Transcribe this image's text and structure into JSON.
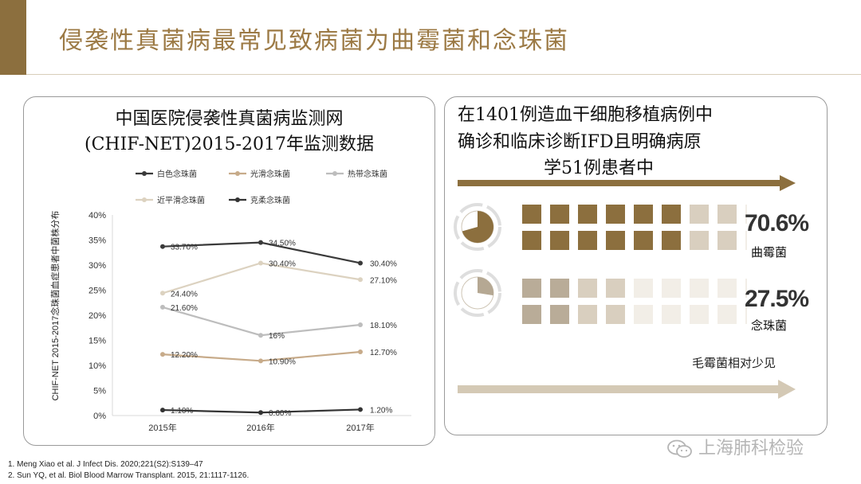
{
  "slide": {
    "title": "侵袭性真菌病最常见致病菌为曲霉菌和念珠菌"
  },
  "left_panel": {
    "title_line1": "中国医院侵袭性真菌病监测网",
    "title_line2": "(CHIF-NET)2015-2017年监测数据"
  },
  "chart_data": {
    "type": "line",
    "ylabel": "CHIF-NET 2015-2017念珠菌血症患者中菌株分布",
    "xlabel": "",
    "x": [
      "2015年",
      "2016年",
      "2017年"
    ],
    "ylim": [
      0,
      40
    ],
    "yticks": [
      "0%",
      "5%",
      "10%",
      "15%",
      "20%",
      "25%",
      "30%",
      "35%",
      "40%"
    ],
    "ytick_values": [
      0,
      5,
      10,
      15,
      20,
      25,
      30,
      35,
      40
    ],
    "legend_position": "top",
    "grid": false,
    "series": [
      {
        "name": "白色念珠菌",
        "color": "#3a3a3a",
        "values": [
          33.7,
          34.5,
          30.4
        ],
        "labels": [
          "33.70%",
          "34.50%",
          "30.40%"
        ]
      },
      {
        "name": "光滑念珠菌",
        "color": "#c7ab8a",
        "values": [
          12.2,
          10.9,
          12.7
        ],
        "labels": [
          "12.20%",
          "10.90%",
          "12.70%"
        ]
      },
      {
        "name": "热带念珠菌",
        "color": "#bdbdbd",
        "values": [
          21.6,
          16.0,
          18.1
        ],
        "labels": [
          "21.60%",
          "16%",
          "18.10%"
        ]
      },
      {
        "name": "近平滑念珠菌",
        "color": "#dcd2c0",
        "values": [
          24.4,
          30.4,
          27.1
        ],
        "labels": [
          "24.40%",
          "30.40%",
          "27.10%"
        ]
      },
      {
        "name": "克柔念珠菌",
        "color": "#333333",
        "values": [
          1.1,
          0.6,
          1.2
        ],
        "labels": [
          "1.10%",
          "0.60%",
          "1.20%"
        ]
      }
    ]
  },
  "right_panel": {
    "title_line1": "在1401例造血干细胞移植病例中",
    "title_line2": "确诊和临床诊断IFD且明确病原",
    "title_line3": "学51例患者中",
    "stats": [
      {
        "value": "70.6%",
        "label": "曲霉菌",
        "fraction": 0.706
      },
      {
        "value": "27.5%",
        "label": "念珠菌",
        "fraction": 0.275
      }
    ],
    "note": "毛霉菌相对少见",
    "arrow_color_top": "#8c6f3e",
    "arrow_color_bottom": "#d4c9b5"
  },
  "footnotes": [
    "1.    Meng Xiao et al. J Infect Dis. 2020;221(S2):S139–47",
    "2.    Sun YQ, et al. Biol Blood Marrow Transplant.  2015,  21:1117-1126."
  ],
  "watermark": {
    "text": "上海肺科检验",
    "icon": "wechat-icon"
  }
}
